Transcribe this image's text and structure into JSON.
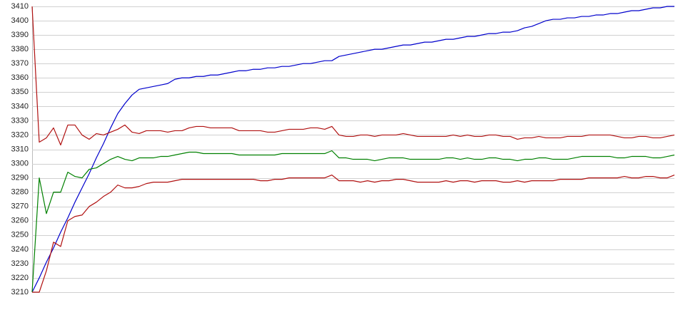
{
  "chart_data": {
    "type": "line",
    "ylim": [
      3210,
      3410
    ],
    "yticks": [
      3210,
      3220,
      3230,
      3240,
      3250,
      3260,
      3270,
      3280,
      3290,
      3300,
      3310,
      3320,
      3330,
      3340,
      3350,
      3360,
      3370,
      3380,
      3390,
      3400,
      3410
    ],
    "grid": true,
    "series": [
      {
        "color": "#0000cc",
        "values": [
          3210,
          3220,
          3231,
          3241,
          3252,
          3262,
          3273,
          3283,
          3293,
          3304,
          3314,
          3325,
          3335,
          3342,
          3348,
          3352,
          3353,
          3354,
          3355,
          3356,
          3359,
          3360,
          3360,
          3361,
          3361,
          3362,
          3362,
          3363,
          3364,
          3365,
          3365,
          3366,
          3366,
          3367,
          3367,
          3368,
          3368,
          3369,
          3370,
          3370,
          3371,
          3372,
          3372,
          3375,
          3376,
          3377,
          3378,
          3379,
          3380,
          3380,
          3381,
          3382,
          3383,
          3383,
          3384,
          3385,
          3385,
          3386,
          3387,
          3387,
          3388,
          3389,
          3389,
          3390,
          3391,
          3391,
          3392,
          3392,
          3393,
          3395,
          3396,
          3398,
          3400,
          3401,
          3401,
          3402,
          3402,
          3403,
          3403,
          3404,
          3404,
          3405,
          3405,
          3406,
          3407,
          3407,
          3408,
          3409,
          3409,
          3410,
          3410
        ]
      },
      {
        "color": "#b01010",
        "values": [
          3410,
          3315,
          3318,
          3325,
          3313,
          3327,
          3327,
          3320,
          3317,
          3321,
          3320,
          3322,
          3324,
          3327,
          3322,
          3321,
          3323,
          3323,
          3323,
          3322,
          3323,
          3323,
          3325,
          3326,
          3326,
          3325,
          3325,
          3325,
          3325,
          3323,
          3323,
          3323,
          3323,
          3322,
          3322,
          3323,
          3324,
          3324,
          3324,
          3325,
          3325,
          3324,
          3326,
          3320,
          3319,
          3319,
          3320,
          3320,
          3319,
          3320,
          3320,
          3320,
          3321,
          3320,
          3319,
          3319,
          3319,
          3319,
          3319,
          3320,
          3319,
          3320,
          3319,
          3319,
          3320,
          3320,
          3319,
          3319,
          3317,
          3318,
          3318,
          3319,
          3318,
          3318,
          3318,
          3319,
          3319,
          3319,
          3320,
          3320,
          3320,
          3320,
          3319,
          3318,
          3318,
          3319,
          3319,
          3318,
          3318,
          3319,
          3320
        ]
      },
      {
        "color": "#008000",
        "values": [
          3210,
          3290,
          3265,
          3280,
          3280,
          3294,
          3291,
          3290,
          3296,
          3297,
          3300,
          3303,
          3305,
          3303,
          3302,
          3304,
          3304,
          3304,
          3305,
          3305,
          3306,
          3307,
          3308,
          3308,
          3307,
          3307,
          3307,
          3307,
          3307,
          3306,
          3306,
          3306,
          3306,
          3306,
          3306,
          3307,
          3307,
          3307,
          3307,
          3307,
          3307,
          3307,
          3309,
          3304,
          3304,
          3303,
          3303,
          3303,
          3302,
          3303,
          3304,
          3304,
          3304,
          3303,
          3303,
          3303,
          3303,
          3303,
          3304,
          3304,
          3303,
          3304,
          3303,
          3303,
          3304,
          3304,
          3303,
          3303,
          3302,
          3303,
          3303,
          3304,
          3304,
          3303,
          3303,
          3303,
          3304,
          3305,
          3305,
          3305,
          3305,
          3305,
          3304,
          3304,
          3305,
          3305,
          3305,
          3304,
          3304,
          3305,
          3306
        ]
      },
      {
        "color": "#b01010",
        "values": [
          3210,
          3210,
          3225,
          3245,
          3242,
          3260,
          3263,
          3264,
          3270,
          3273,
          3277,
          3280,
          3285,
          3283,
          3283,
          3284,
          3286,
          3287,
          3287,
          3287,
          3288,
          3289,
          3289,
          3289,
          3289,
          3289,
          3289,
          3289,
          3289,
          3289,
          3289,
          3289,
          3288,
          3288,
          3289,
          3289,
          3290,
          3290,
          3290,
          3290,
          3290,
          3290,
          3292,
          3288,
          3288,
          3288,
          3287,
          3288,
          3287,
          3288,
          3288,
          3289,
          3289,
          3288,
          3287,
          3287,
          3287,
          3287,
          3288,
          3287,
          3288,
          3288,
          3287,
          3288,
          3288,
          3288,
          3287,
          3287,
          3288,
          3287,
          3288,
          3288,
          3288,
          3288,
          3289,
          3289,
          3289,
          3289,
          3290,
          3290,
          3290,
          3290,
          3290,
          3291,
          3290,
          3290,
          3291,
          3291,
          3290,
          3290,
          3292
        ]
      }
    ]
  }
}
